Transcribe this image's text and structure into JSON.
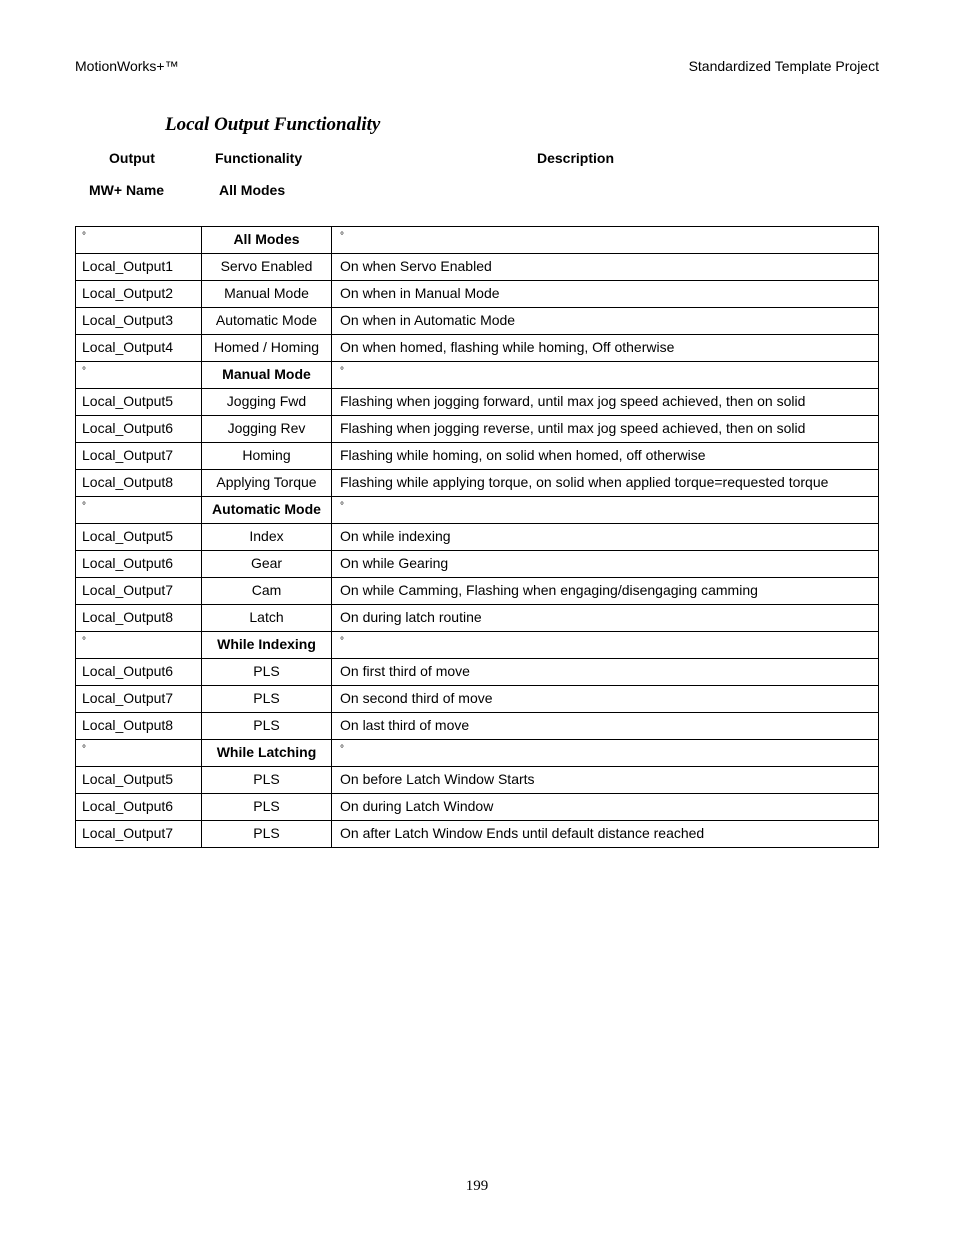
{
  "header": {
    "left": "MotionWorks+™",
    "right": "Standardized Template Project"
  },
  "title": "Local Output Functionality",
  "column_headers": {
    "output": "Output",
    "functionality": "Functionality",
    "description": "Description"
  },
  "sub_headers": {
    "mw_name": "MW+ Name",
    "all_modes": "All Modes"
  },
  "degree": "°",
  "sections": [
    {
      "label": "All Modes",
      "rows": [
        {
          "name": "Local_Output1",
          "func": "Servo Enabled",
          "desc": "On when Servo Enabled"
        },
        {
          "name": "Local_Output2",
          "func": "Manual Mode",
          "desc": "On when in Manual Mode"
        },
        {
          "name": "Local_Output3",
          "func": "Automatic Mode",
          "desc": "On when in Automatic Mode"
        },
        {
          "name": "Local_Output4",
          "func": "Homed / Homing",
          "desc": "On when homed, flashing while homing, Off otherwise"
        }
      ]
    },
    {
      "label": "Manual Mode",
      "rows": [
        {
          "name": "Local_Output5",
          "func": "Jogging Fwd",
          "desc": "Flashing when jogging forward, until max jog speed achieved, then on solid"
        },
        {
          "name": "Local_Output6",
          "func": "Jogging Rev",
          "desc": "Flashing when jogging reverse, until max jog speed achieved, then on solid"
        },
        {
          "name": "Local_Output7",
          "func": "Homing",
          "desc": "Flashing while homing, on solid when homed, off otherwise"
        },
        {
          "name": "Local_Output8",
          "func": "Applying Torque",
          "desc": "Flashing while applying torque, on solid when applied torque=requested torque"
        }
      ]
    },
    {
      "label": "Automatic Mode",
      "rows": [
        {
          "name": "Local_Output5",
          "func": "Index",
          "desc": "On while indexing"
        },
        {
          "name": "Local_Output6",
          "func": "Gear",
          "desc": "On while Gearing"
        },
        {
          "name": "Local_Output7",
          "func": "Cam",
          "desc": "On while Camming, Flashing when engaging/disengaging camming"
        },
        {
          "name": "Local_Output8",
          "func": "Latch",
          "desc": "On during latch routine"
        }
      ]
    },
    {
      "label": "While Indexing",
      "rows": [
        {
          "name": "Local_Output6",
          "func": "PLS",
          "desc": "On first third of move"
        },
        {
          "name": "Local_Output7",
          "func": "PLS",
          "desc": "On second third of move"
        },
        {
          "name": "Local_Output8",
          "func": "PLS",
          "desc": "On last third of move"
        }
      ]
    },
    {
      "label": "While Latching",
      "rows": [
        {
          "name": "Local_Output5",
          "func": "PLS",
          "desc": "On before Latch Window Starts"
        },
        {
          "name": "Local_Output6",
          "func": "PLS",
          "desc": "On during Latch Window"
        },
        {
          "name": "Local_Output7",
          "func": "PLS",
          "desc": "On after Latch Window Ends until default distance reached"
        }
      ]
    }
  ],
  "page_number": "199"
}
